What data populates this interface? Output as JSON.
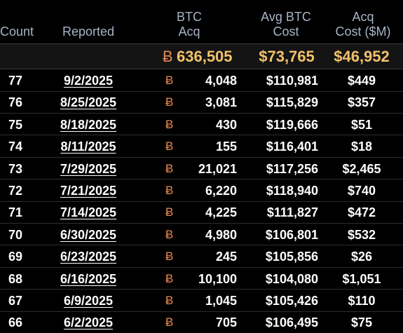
{
  "header": {
    "count": "Count",
    "reported": "Reported",
    "btc_acq": [
      "BTC",
      "Acq"
    ],
    "avg_btc_cost": [
      "Avg BTC",
      "Cost"
    ],
    "acq_cost": [
      "Acq",
      "Cost ($M)"
    ]
  },
  "btc_symbol": "Ƀ",
  "totals": {
    "btc_acq": "636,505",
    "avg_btc_cost": "$73,765",
    "acq_cost": "$46,952"
  },
  "colors": {
    "background": "#000000",
    "header_text": "#a7b3c6",
    "totals_text": "#f2c26b",
    "btc_symbol": "#e8874f"
  },
  "rows": [
    {
      "count": "77",
      "reported": "9/2/2025",
      "btc_acq": "4,048",
      "avg_btc_cost": "$110,981",
      "acq_cost": "$449"
    },
    {
      "count": "76",
      "reported": "8/25/2025",
      "btc_acq": "3,081",
      "avg_btc_cost": "$115,829",
      "acq_cost": "$357"
    },
    {
      "count": "75",
      "reported": "8/18/2025",
      "btc_acq": "430",
      "avg_btc_cost": "$119,666",
      "acq_cost": "$51"
    },
    {
      "count": "74",
      "reported": "8/11/2025",
      "btc_acq": "155",
      "avg_btc_cost": "$116,401",
      "acq_cost": "$18"
    },
    {
      "count": "73",
      "reported": "7/29/2025",
      "btc_acq": "21,021",
      "avg_btc_cost": "$117,256",
      "acq_cost": "$2,465"
    },
    {
      "count": "72",
      "reported": "7/21/2025",
      "btc_acq": "6,220",
      "avg_btc_cost": "$118,940",
      "acq_cost": "$740"
    },
    {
      "count": "71",
      "reported": "7/14/2025",
      "btc_acq": "4,225",
      "avg_btc_cost": "$111,827",
      "acq_cost": "$472"
    },
    {
      "count": "70",
      "reported": "6/30/2025",
      "btc_acq": "4,980",
      "avg_btc_cost": "$106,801",
      "acq_cost": "$532"
    },
    {
      "count": "69",
      "reported": "6/23/2025",
      "btc_acq": "245",
      "avg_btc_cost": "$105,856",
      "acq_cost": "$26"
    },
    {
      "count": "68",
      "reported": "6/16/2025",
      "btc_acq": "10,100",
      "avg_btc_cost": "$104,080",
      "acq_cost": "$1,051"
    },
    {
      "count": "67",
      "reported": "6/9/2025",
      "btc_acq": "1,045",
      "avg_btc_cost": "$105,426",
      "acq_cost": "$110"
    },
    {
      "count": "66",
      "reported": "6/2/2025",
      "btc_acq": "705",
      "avg_btc_cost": "$106,495",
      "acq_cost": "$75"
    }
  ]
}
